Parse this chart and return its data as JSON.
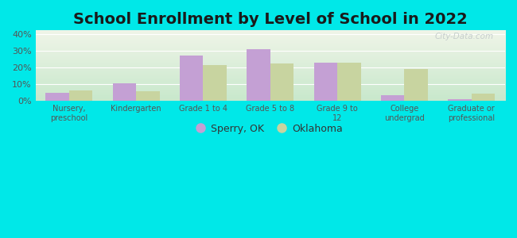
{
  "title": "School Enrollment by Level of School in 2022",
  "categories": [
    "Nursery,\npreschool",
    "Kindergarten",
    "Grade 1 to 4",
    "Grade 5 to 8",
    "Grade 9 to\n12",
    "College\nundergrad",
    "Graduate or\nprofessional"
  ],
  "sperry_values": [
    5.0,
    10.5,
    27.0,
    31.0,
    23.0,
    3.5,
    1.0
  ],
  "oklahoma_values": [
    6.5,
    6.0,
    21.5,
    22.5,
    23.0,
    19.0,
    4.5
  ],
  "sperry_color": "#c4a0d4",
  "oklahoma_color": "#c8d4a0",
  "background_outer": "#00e8e8",
  "background_inner_top": "#f0f5e8",
  "background_inner_bottom": "#c8e8cc",
  "ylim": [
    0,
    42
  ],
  "yticks": [
    0,
    10,
    20,
    30,
    40
  ],
  "ytick_labels": [
    "0%",
    "10%",
    "20%",
    "30%",
    "40%"
  ],
  "title_fontsize": 14,
  "legend_labels": [
    "Sperry, OK",
    "Oklahoma"
  ],
  "bar_width": 0.35,
  "watermark": "City-Data.com"
}
